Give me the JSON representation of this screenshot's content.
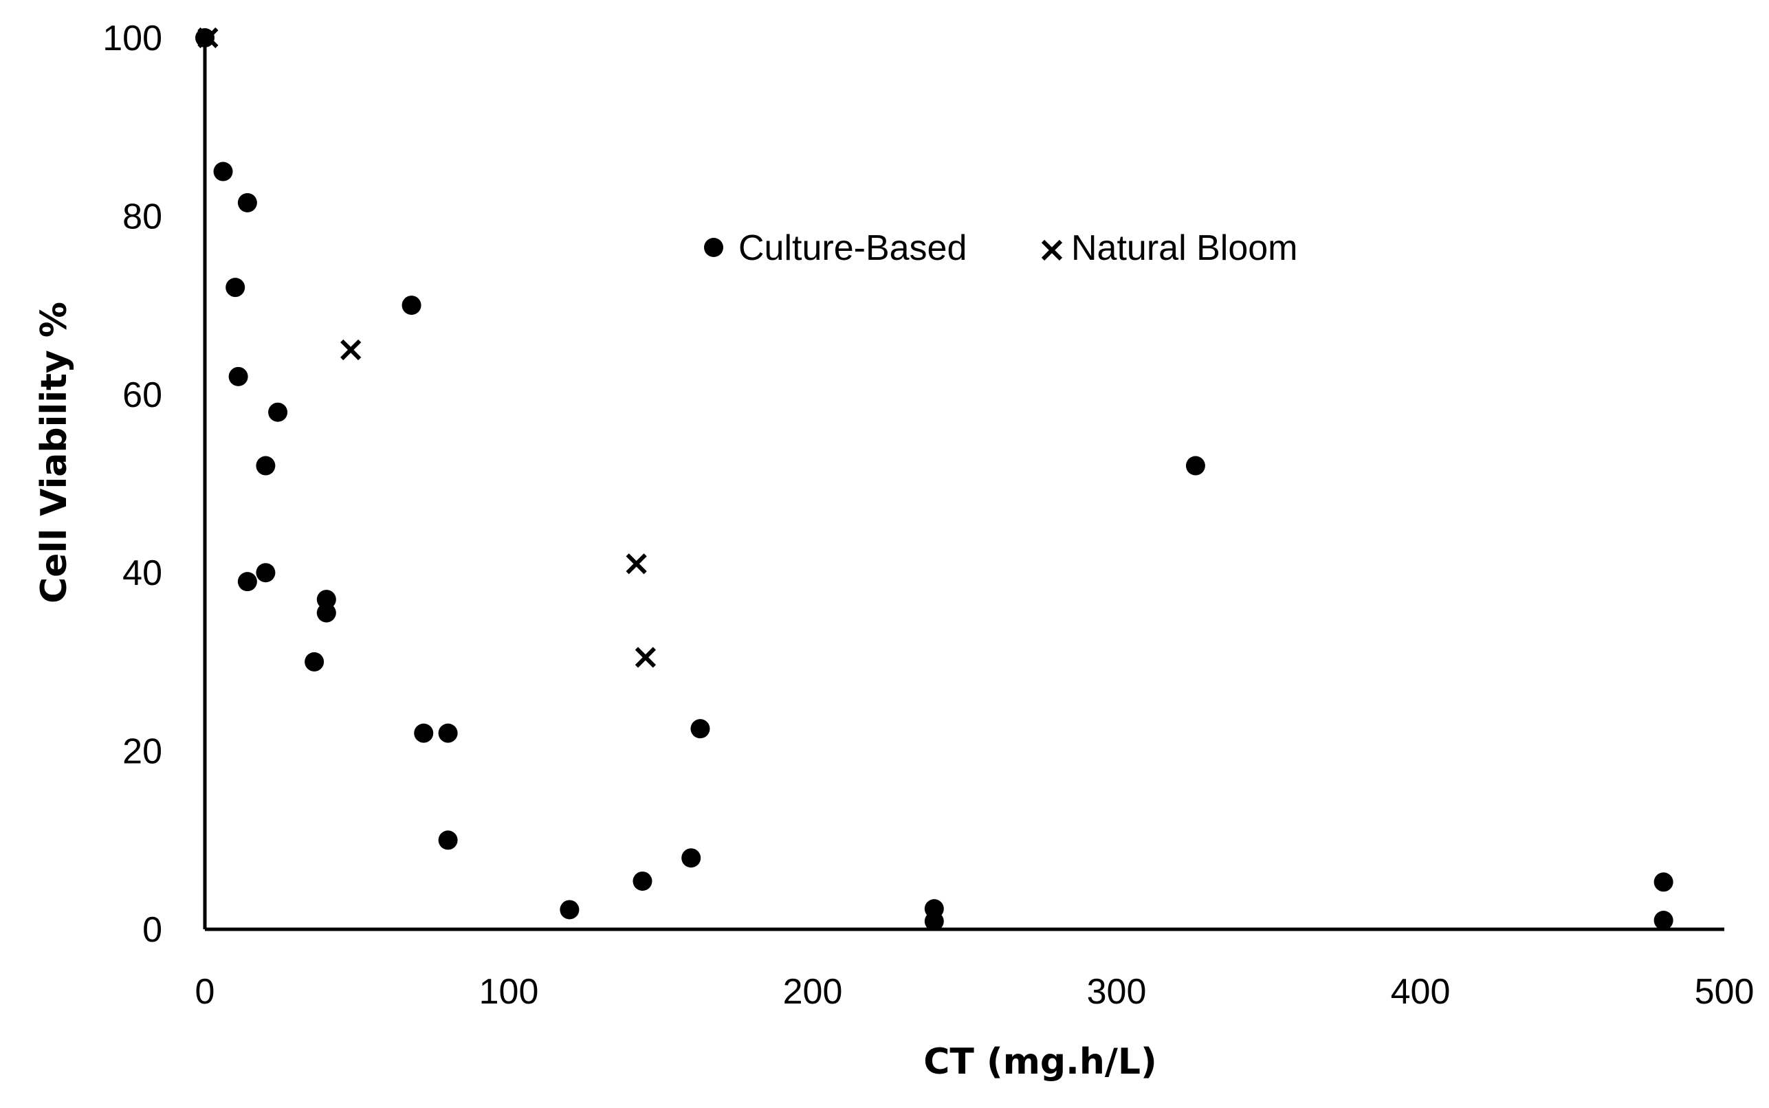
{
  "chart_data": {
    "type": "scatter",
    "title": "",
    "xlabel": "CT (mg.h/L)",
    "ylabel": "Cell Viability %",
    "xlim": [
      0,
      500
    ],
    "ylim": [
      0,
      100
    ],
    "xticks": [
      0,
      100,
      200,
      300,
      400,
      500
    ],
    "yticks": [
      0,
      20,
      40,
      60,
      80,
      100
    ],
    "grid": false,
    "legend_position": "top-center",
    "series": [
      {
        "name": "Culture-Based",
        "marker": "circle",
        "color": "#000000",
        "points": [
          {
            "x": 0,
            "y": 100
          },
          {
            "x": 6,
            "y": 85
          },
          {
            "x": 14,
            "y": 81.5
          },
          {
            "x": 10,
            "y": 72
          },
          {
            "x": 11,
            "y": 62
          },
          {
            "x": 24,
            "y": 58
          },
          {
            "x": 20,
            "y": 52
          },
          {
            "x": 14,
            "y": 39
          },
          {
            "x": 20,
            "y": 40
          },
          {
            "x": 40,
            "y": 37
          },
          {
            "x": 40,
            "y": 35.5
          },
          {
            "x": 36,
            "y": 30
          },
          {
            "x": 68,
            "y": 70
          },
          {
            "x": 72,
            "y": 22
          },
          {
            "x": 80,
            "y": 22
          },
          {
            "x": 80,
            "y": 10
          },
          {
            "x": 120,
            "y": 2.2
          },
          {
            "x": 144,
            "y": 5.4
          },
          {
            "x": 160,
            "y": 8
          },
          {
            "x": 163,
            "y": 22.5
          },
          {
            "x": 240,
            "y": 2.3
          },
          {
            "x": 240,
            "y": 0.9
          },
          {
            "x": 326,
            "y": 52
          },
          {
            "x": 480,
            "y": 5.3
          },
          {
            "x": 480,
            "y": 1
          }
        ]
      },
      {
        "name": "Natural Bloom",
        "marker": "x",
        "color": "#000000",
        "points": [
          {
            "x": 1,
            "y": 100
          },
          {
            "x": 48,
            "y": 65
          },
          {
            "x": 142,
            "y": 41
          },
          {
            "x": 145,
            "y": 30.5
          }
        ]
      }
    ]
  }
}
